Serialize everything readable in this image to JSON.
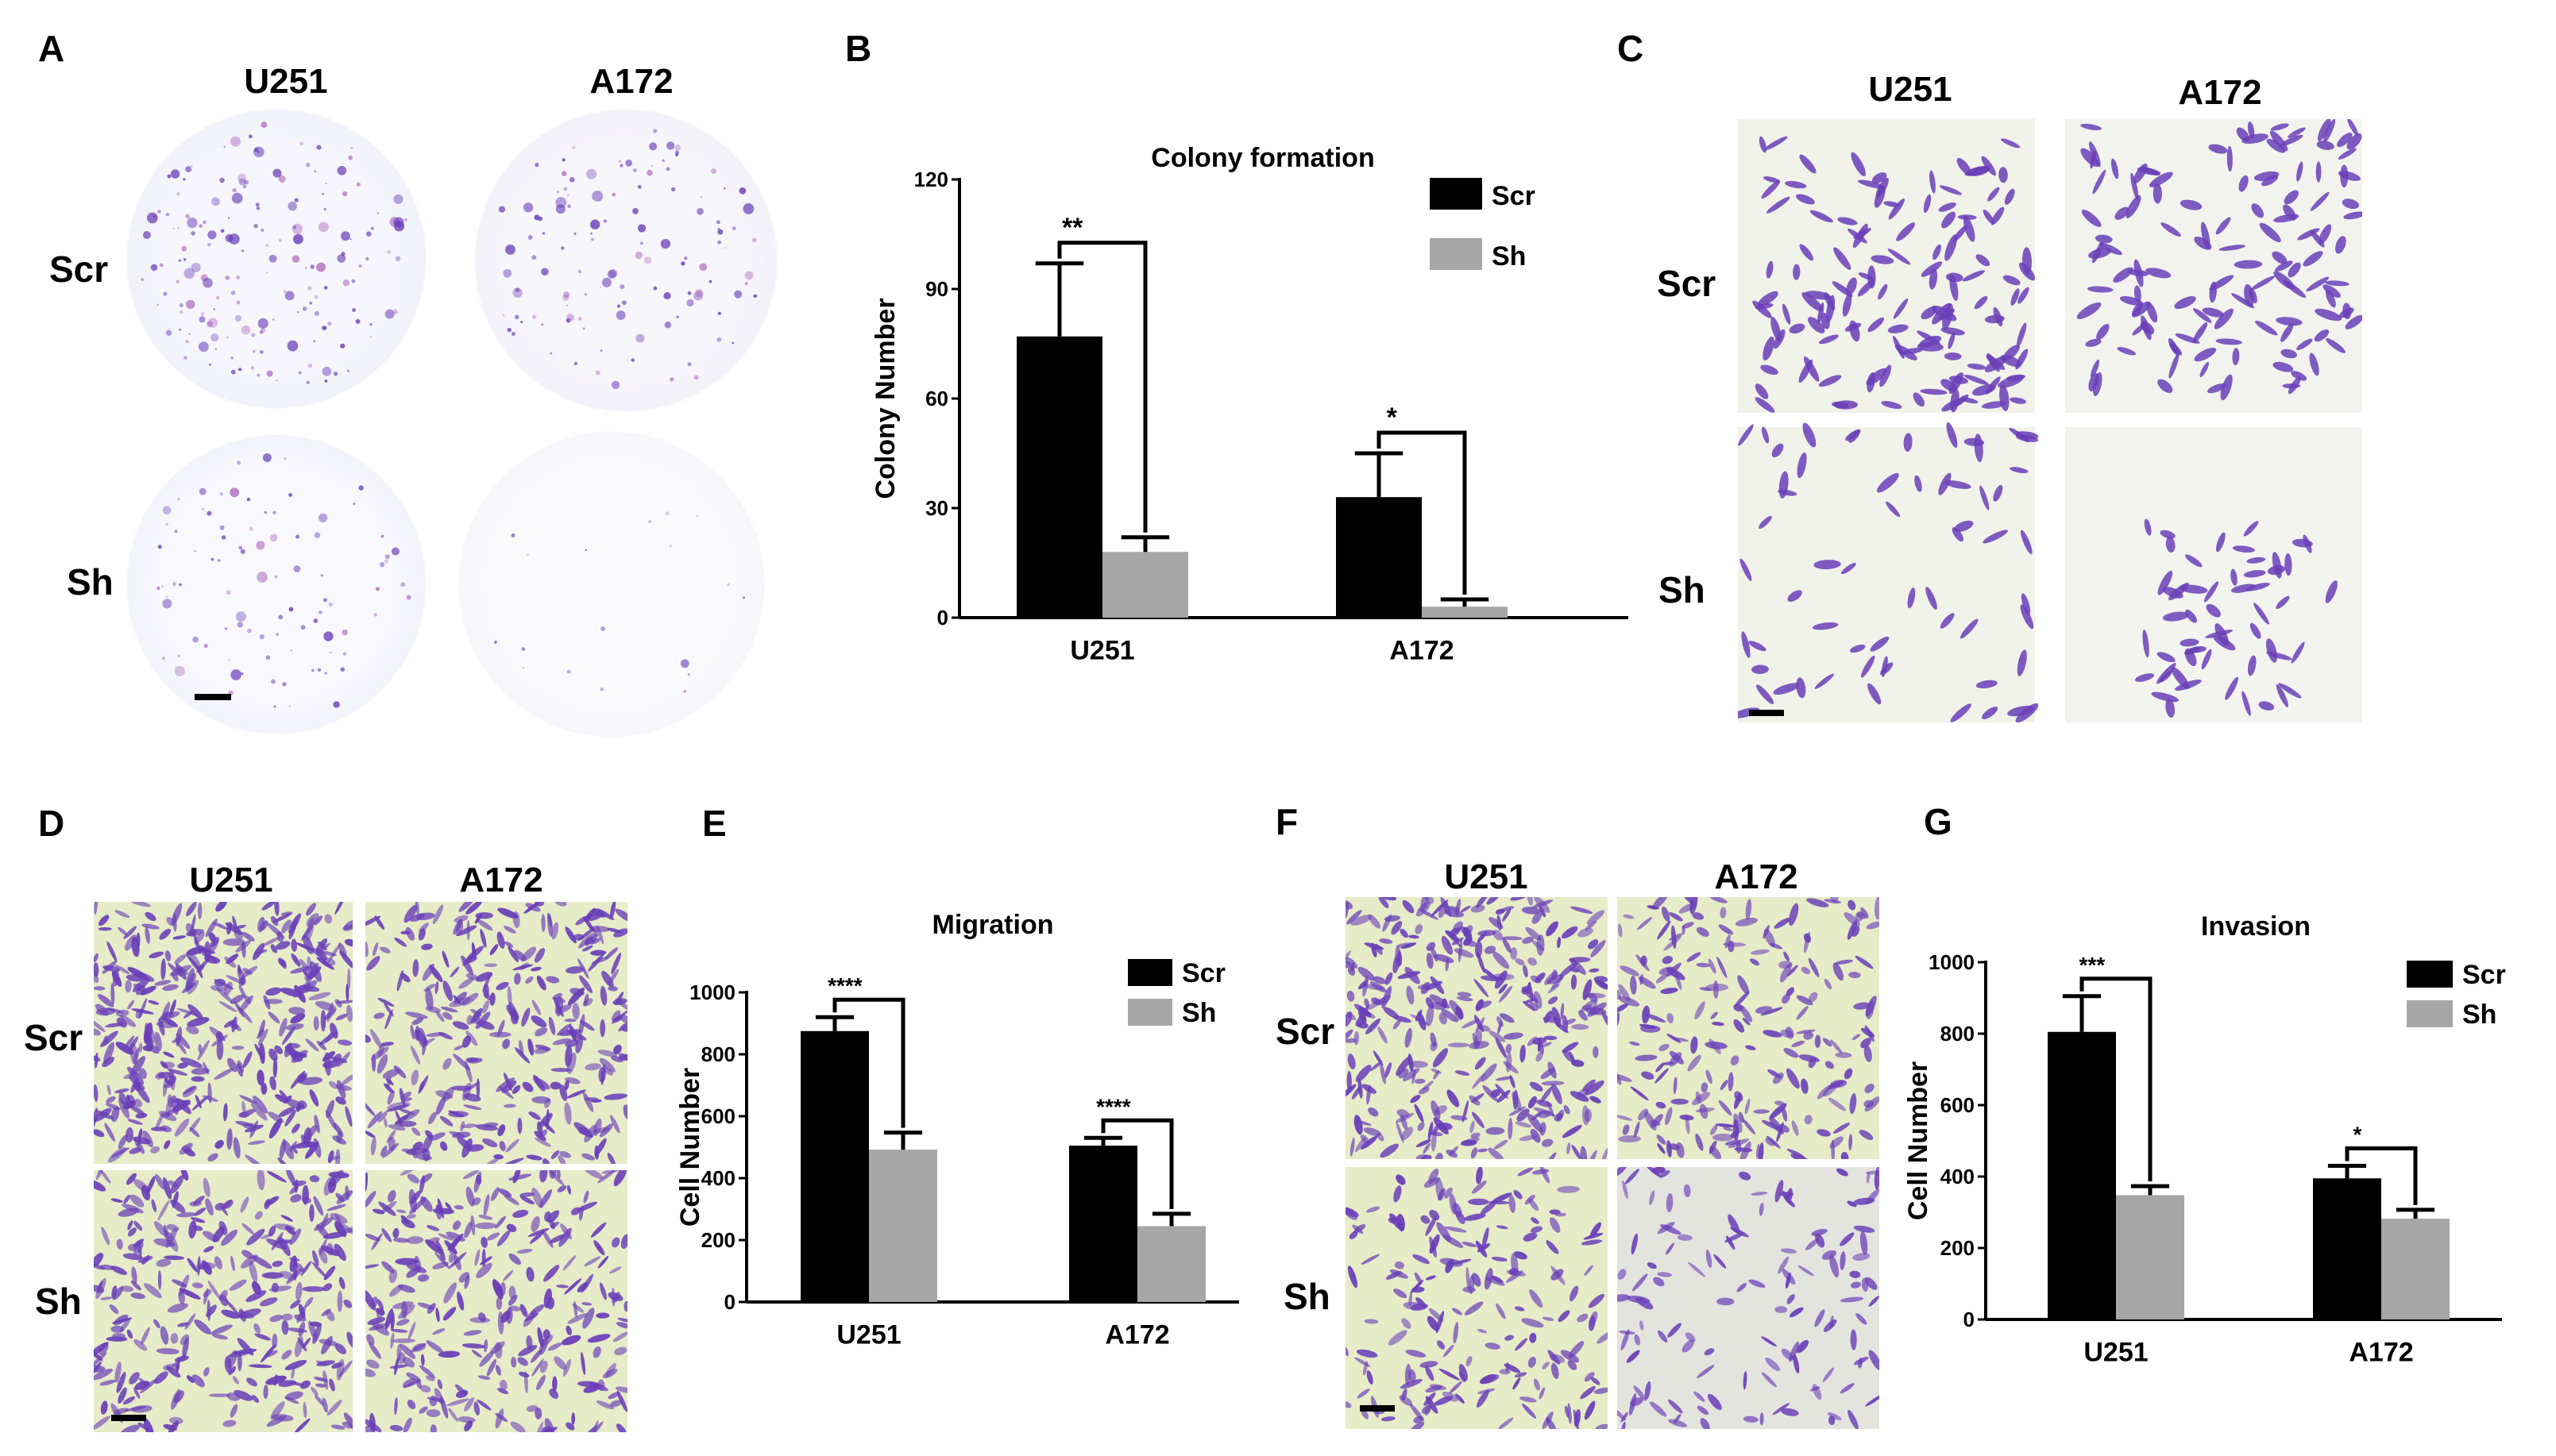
{
  "panels": {
    "A": {
      "label": "A",
      "col_headers": [
        "U251",
        "A172"
      ],
      "row_headers": [
        "Scr",
        "Sh"
      ]
    },
    "B": {
      "label": "B"
    },
    "C": {
      "label": "C",
      "col_headers": [
        "U251",
        "A172"
      ],
      "row_headers": [
        "Scr",
        "Sh"
      ]
    },
    "D": {
      "label": "D",
      "col_headers": [
        "U251",
        "A172"
      ],
      "row_headers": [
        "Scr",
        "Sh"
      ]
    },
    "E": {
      "label": "E"
    },
    "F": {
      "label": "F",
      "col_headers": [
        "U251",
        "A172"
      ],
      "row_headers": [
        "Scr",
        "Sh"
      ]
    },
    "G": {
      "label": "G"
    }
  },
  "colors": {
    "scr": "#000000",
    "sh": "#a6a6a6",
    "crystal_violet": "#6a3fb8",
    "dish_bg": "#f3f4fb",
    "transwell_bg": "#e6ebc8"
  },
  "chart_data": [
    {
      "panel": "B",
      "type": "bar",
      "title": "Colony formation",
      "ylabel": "Colony Number",
      "xlabel": "",
      "categories": [
        "U251",
        "A172"
      ],
      "ylim": [
        0,
        120
      ],
      "yticks": [
        "0",
        "30",
        "60",
        "90",
        "120"
      ],
      "legend": "top-right",
      "series": [
        {
          "name": "Scr",
          "values": [
            77,
            33
          ],
          "errors": [
            20,
            12
          ]
        },
        {
          "name": "Sh",
          "values": [
            18,
            3
          ],
          "errors": [
            4,
            2
          ]
        }
      ],
      "significance": [
        "**",
        "*"
      ]
    },
    {
      "panel": "E",
      "type": "bar",
      "title": "Migration",
      "ylabel": "Cell Number",
      "xlabel": "",
      "categories": [
        "U251",
        "A172"
      ],
      "ylim": [
        0,
        1000
      ],
      "yticks": [
        "0",
        "200",
        "400",
        "600",
        "800",
        "1000"
      ],
      "legend": "top-right",
      "series": [
        {
          "name": "Scr",
          "values": [
            875,
            505
          ],
          "errors": [
            45,
            25
          ]
        },
        {
          "name": "Sh",
          "values": [
            492,
            245
          ],
          "errors": [
            55,
            40
          ]
        }
      ],
      "significance": [
        "****",
        "****"
      ]
    },
    {
      "panel": "G",
      "type": "bar",
      "title": "Invasion",
      "ylabel": "Cell Number",
      "xlabel": "",
      "categories": [
        "U251",
        "A172"
      ],
      "ylim": [
        0,
        1000
      ],
      "yticks": [
        "0",
        "200",
        "400",
        "600",
        "800",
        "1000"
      ],
      "legend": "top-right",
      "series": [
        {
          "name": "Scr",
          "values": [
            805,
            395
          ],
          "errors": [
            100,
            35
          ]
        },
        {
          "name": "Sh",
          "values": [
            348,
            282
          ],
          "errors": [
            25,
            25
          ]
        }
      ],
      "significance": [
        "***",
        "*"
      ]
    }
  ]
}
